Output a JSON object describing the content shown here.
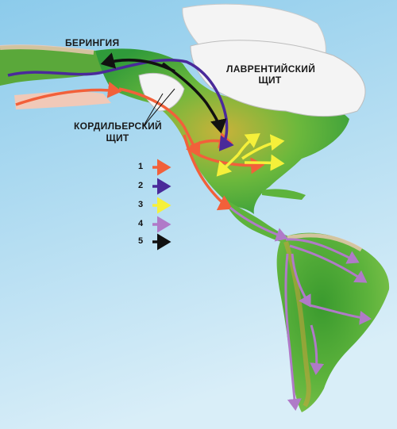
{
  "labels": {
    "beringia": "БЕРИНГИЯ",
    "laurentide_line1": "ЛАВРЕНТИЙСКИЙ",
    "laurentide_line2": "ЩИТ",
    "cordilleran_line1": "КОРДИЛЬЕРСКИЙ",
    "cordilleran_line2": "ЩИТ"
  },
  "legend": [
    {
      "num": "1",
      "color": "#f2603a"
    },
    {
      "num": "2",
      "color": "#4a2a9a"
    },
    {
      "num": "3",
      "color": "#f5f03a"
    },
    {
      "num": "4",
      "color": "#b07ac8"
    },
    {
      "num": "5",
      "color": "#111111"
    }
  ],
  "colors": {
    "ocean": "#9fd3ee",
    "land_green": "#4fae3a",
    "ice": "#f4f4f4",
    "shore": "#f1c9b8"
  }
}
